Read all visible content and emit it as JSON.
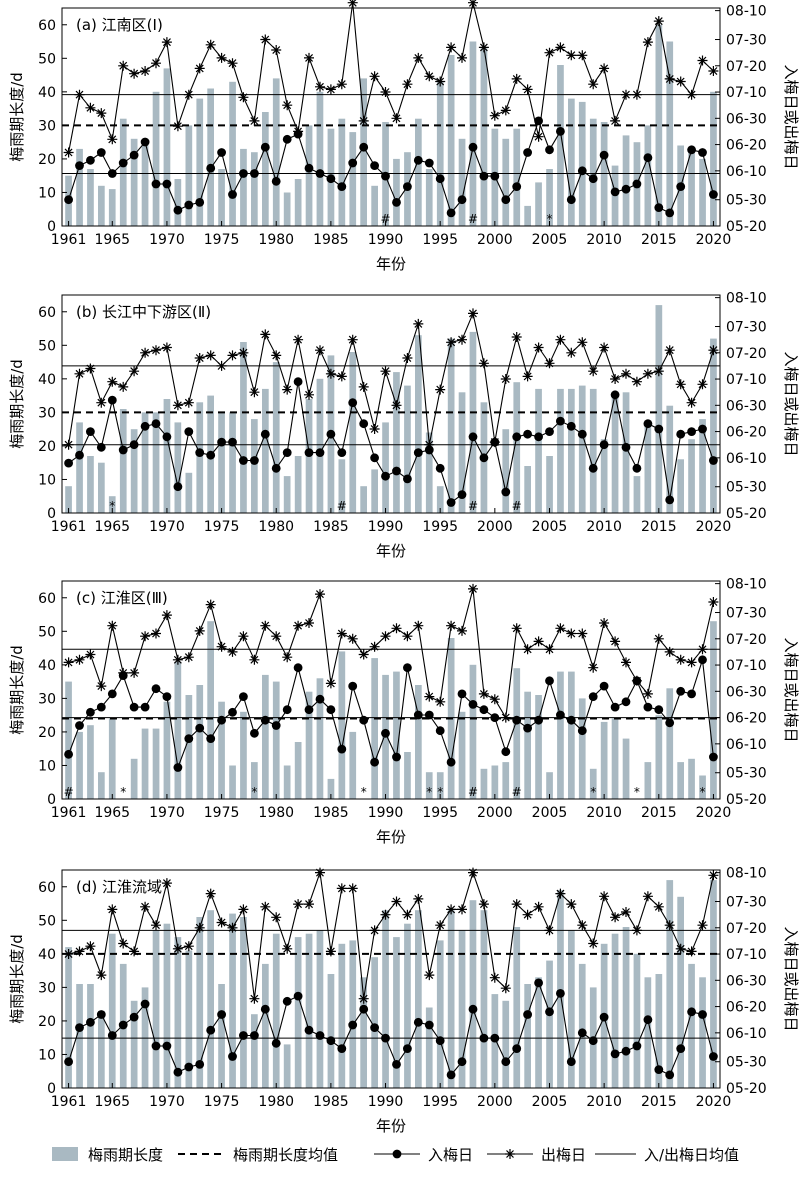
{
  "figure": {
    "y_label_left": "梅雨期长度/d",
    "y_label_right": "入梅日或出梅日",
    "x_label": "年份",
    "x_ticks": [
      "1961",
      "1965",
      "1970",
      "1975",
      "1980",
      "1985",
      "1990",
      "1995",
      "2000",
      "2005",
      "2010",
      "2015",
      "2020"
    ],
    "y_ticks_left": [
      "0",
      "10",
      "20",
      "30",
      "40",
      "50",
      "60"
    ],
    "y_ticks_right": [
      "05-20",
      "05-30",
      "06-10",
      "06-20",
      "06-30",
      "07-10",
      "07-20",
      "07-30",
      "08-10"
    ],
    "colors": {
      "bar": "#a9b9c2",
      "line": "#000000"
    }
  },
  "legend": {
    "bar": "梅雨期长度",
    "mean_length": "梅雨期长度均值",
    "onset": "入梅日",
    "end": "出梅日",
    "mean_dates": "入/出梅日均值"
  },
  "chart_data": [
    {
      "type": "bar",
      "title": "(a) 江南区(Ⅰ)",
      "x": [
        1961,
        1962,
        1963,
        1964,
        1965,
        1966,
        1967,
        1968,
        1969,
        1970,
        1971,
        1972,
        1973,
        1974,
        1975,
        1976,
        1977,
        1978,
        1979,
        1980,
        1981,
        1982,
        1983,
        1984,
        1985,
        1986,
        1987,
        1988,
        1989,
        1990,
        1991,
        1992,
        1993,
        1994,
        1995,
        1996,
        1997,
        1998,
        1999,
        2000,
        2001,
        2002,
        2003,
        2004,
        2005,
        2006,
        2007,
        2008,
        2009,
        2010,
        2011,
        2012,
        2013,
        2014,
        2015,
        2016,
        2017,
        2018,
        2019,
        2020
      ],
      "ylim_left": [
        0,
        65
      ],
      "right_axis_units": "days after 05-20",
      "ylim_right": [
        0,
        83
      ],
      "series": [
        {
          "name": "梅雨期长度",
          "values": [
            15,
            23,
            17,
            12,
            11,
            32,
            26,
            24,
            40,
            47,
            14,
            30,
            38,
            41,
            17,
            43,
            23,
            22,
            34,
            44,
            10,
            14,
            30,
            40,
            29,
            32,
            28,
            44,
            12,
            31,
            20,
            22,
            32,
            17,
            43,
            51,
            26,
            55,
            53,
            29,
            26,
            29,
            6,
            13,
            17,
            48,
            38,
            37,
            32,
            31,
            18,
            27,
            25,
            30,
            60,
            55,
            24,
            22,
            20,
            40
          ]
        },
        {
          "name": "入梅日",
          "values": [
            10,
            23,
            25,
            28,
            20,
            24,
            27,
            32,
            16,
            16,
            6,
            8,
            9,
            22,
            28,
            12,
            20,
            20,
            30,
            17,
            33,
            35,
            22,
            20,
            18,
            15,
            24,
            30,
            23,
            19,
            9,
            15,
            25,
            24,
            18,
            5,
            10,
            30,
            19,
            19,
            10,
            15,
            28,
            40,
            29,
            36,
            10,
            21,
            18,
            27,
            13,
            14,
            16,
            26,
            7,
            5,
            15,
            29,
            28,
            12
          ]
        },
        {
          "name": "出梅日",
          "values": [
            28,
            50,
            45,
            43,
            33,
            61,
            58,
            59,
            62,
            70,
            38,
            50,
            60,
            69,
            64,
            62,
            49,
            40,
            71,
            67,
            46,
            36,
            64,
            53,
            52,
            54,
            85,
            40,
            57,
            51,
            41,
            54,
            64,
            57,
            55,
            68,
            64,
            85,
            68,
            42,
            44,
            56,
            52,
            34,
            66,
            68,
            65,
            65,
            54,
            60,
            40,
            50,
            50,
            70,
            78,
            56,
            55,
            50,
            63,
            59
          ]
        }
      ],
      "mean_length": 30,
      "mean_onset": 20,
      "mean_end": 50,
      "annotations": [
        {
          "x": 1990,
          "label": "#"
        },
        {
          "x": 1998,
          "label": "#"
        },
        {
          "x": 2005,
          "label": "*"
        }
      ]
    },
    {
      "type": "bar",
      "title": "(b) 长江中下游区(Ⅱ)",
      "x": [
        1961,
        1962,
        1963,
        1964,
        1965,
        1966,
        1967,
        1968,
        1969,
        1970,
        1971,
        1972,
        1973,
        1974,
        1975,
        1976,
        1977,
        1978,
        1979,
        1980,
        1981,
        1982,
        1983,
        1984,
        1985,
        1986,
        1987,
        1988,
        1989,
        1990,
        1991,
        1992,
        1993,
        1994,
        1995,
        1996,
        1997,
        1998,
        1999,
        2000,
        2001,
        2002,
        2003,
        2004,
        2005,
        2006,
        2007,
        2008,
        2009,
        2010,
        2011,
        2012,
        2013,
        2014,
        2015,
        2016,
        2017,
        2018,
        2019,
        2020
      ],
      "ylim_left": [
        0,
        65
      ],
      "right_axis_units": "days after 05-20",
      "ylim_right": [
        0,
        83
      ],
      "series": [
        {
          "name": "梅雨期长度",
          "values": [
            8,
            27,
            17,
            15,
            5,
            31,
            25,
            30,
            30,
            34,
            27,
            12,
            33,
            35,
            30,
            30,
            51,
            28,
            37,
            45,
            11,
            17,
            34,
            40,
            47,
            16,
            48,
            8,
            13,
            27,
            42,
            38,
            53,
            24,
            8,
            52,
            36,
            54,
            33,
            0,
            25,
            39,
            14,
            37,
            17,
            37,
            37,
            38,
            37,
            22,
            35,
            36,
            11,
            27,
            62,
            32,
            16,
            22,
            28,
            52
          ]
        },
        {
          "name": "入梅日",
          "values": [
            19,
            22,
            31,
            25,
            43,
            24,
            26,
            33,
            34,
            29,
            10,
            31,
            23,
            22,
            27,
            27,
            20,
            20,
            30,
            17,
            23,
            50,
            23,
            23,
            30,
            23,
            42,
            34,
            21,
            14,
            16,
            13,
            23,
            24,
            17,
            4,
            7,
            29,
            21,
            27,
            8,
            29,
            30,
            29,
            31,
            35,
            33,
            30,
            17,
            26,
            45,
            25,
            17,
            34,
            32,
            5,
            30,
            31,
            32,
            20
          ]
        },
        {
          "name": "出梅日",
          "values": [
            26,
            53,
            55,
            42,
            50,
            48,
            54,
            61,
            62,
            63,
            41,
            42,
            59,
            60,
            56,
            60,
            61,
            46,
            68,
            60,
            47,
            66,
            45,
            62,
            53,
            52,
            66,
            48,
            32,
            54,
            41,
            59,
            72,
            26,
            47,
            65,
            66,
            76,
            57,
            27,
            51,
            67,
            52,
            63,
            57,
            66,
            61,
            65,
            54,
            63,
            51,
            53,
            50,
            53,
            54,
            62,
            49,
            42,
            49,
            62
          ]
        }
      ],
      "mean_length": 30,
      "mean_onset": 26,
      "mean_end": 56,
      "annotations": [
        {
          "x": 1965,
          "label": "*"
        },
        {
          "x": 1986,
          "label": "#"
        },
        {
          "x": 1998,
          "label": "#"
        },
        {
          "x": 2002,
          "label": "#"
        }
      ]
    },
    {
      "type": "bar",
      "title": "(c) 江淮区(Ⅲ)",
      "x": [
        1961,
        1962,
        1963,
        1964,
        1965,
        1966,
        1967,
        1968,
        1969,
        1970,
        1971,
        1972,
        1973,
        1974,
        1975,
        1976,
        1977,
        1978,
        1979,
        1980,
        1981,
        1982,
        1983,
        1984,
        1985,
        1986,
        1987,
        1988,
        1989,
        1990,
        1991,
        1992,
        1993,
        1994,
        1995,
        1996,
        1997,
        1998,
        1999,
        2000,
        2001,
        2002,
        2003,
        2004,
        2005,
        2006,
        2007,
        2008,
        2009,
        2010,
        2011,
        2012,
        2013,
        2014,
        2015,
        2016,
        2017,
        2018,
        2019,
        2020
      ],
      "ylim_left": [
        0,
        65
      ],
      "right_axis_units": "days after 05-20",
      "ylim_right": [
        0,
        83
      ],
      "series": [
        {
          "name": "梅雨期长度",
          "values": [
            35,
            20,
            22,
            8,
            24,
            0,
            12,
            21,
            21,
            29,
            41,
            31,
            34,
            53,
            29,
            10,
            26,
            11,
            37,
            35,
            10,
            17,
            32,
            36,
            6,
            44,
            20,
            0,
            42,
            37,
            38,
            14,
            34,
            8,
            8,
            48,
            26,
            40,
            9,
            10,
            11,
            39,
            32,
            31,
            8,
            38,
            38,
            30,
            9,
            23,
            24,
            18,
            0,
            11,
            25,
            33,
            11,
            12,
            7,
            53
          ]
        },
        {
          "name": "入梅日",
          "values": [
            17,
            28,
            33,
            35,
            40,
            47,
            35,
            35,
            42,
            39,
            12,
            23,
            27,
            23,
            30,
            33,
            39,
            25,
            30,
            28,
            34,
            50,
            34,
            38,
            34,
            19,
            43,
            30,
            14,
            25,
            16,
            50,
            32,
            32,
            26,
            14,
            40,
            36,
            34,
            31,
            18,
            30,
            27,
            30,
            45,
            32,
            30,
            26,
            39,
            43,
            35,
            37,
            45,
            35,
            34,
            29,
            41,
            40,
            53,
            16
          ]
        },
        {
          "name": "出梅日",
          "values": [
            52,
            53,
            55,
            43,
            66,
            48,
            48,
            62,
            63,
            70,
            53,
            54,
            64,
            74,
            58,
            56,
            62,
            53,
            66,
            62,
            54,
            66,
            67,
            78,
            44,
            63,
            61,
            55,
            58,
            62,
            65,
            62,
            66,
            39,
            37,
            66,
            64,
            80,
            40,
            38,
            31,
            65,
            57,
            60,
            57,
            65,
            63,
            63,
            50,
            67,
            60,
            52,
            45,
            40,
            61,
            56,
            53,
            52,
            57,
            75
          ]
        }
      ],
      "mean_length": 24,
      "mean_onset": 31,
      "mean_end": 57,
      "annotations": [
        {
          "x": 1961,
          "label": "#"
        },
        {
          "x": 1966,
          "label": "*"
        },
        {
          "x": 1978,
          "label": "*"
        },
        {
          "x": 1988,
          "label": "*"
        },
        {
          "x": 1994,
          "label": "*"
        },
        {
          "x": 1995,
          "label": "*"
        },
        {
          "x": 1998,
          "label": "#"
        },
        {
          "x": 2002,
          "label": "#"
        },
        {
          "x": 2009,
          "label": "*"
        },
        {
          "x": 2013,
          "label": "*"
        },
        {
          "x": 2019,
          "label": "*"
        }
      ]
    },
    {
      "type": "bar",
      "title": "(d) 江淮流域",
      "x": [
        1961,
        1962,
        1963,
        1964,
        1965,
        1966,
        1967,
        1968,
        1969,
        1970,
        1971,
        1972,
        1973,
        1974,
        1975,
        1976,
        1977,
        1978,
        1979,
        1980,
        1981,
        1982,
        1983,
        1984,
        1985,
        1986,
        1987,
        1988,
        1989,
        1990,
        1991,
        1992,
        1993,
        1994,
        1995,
        1996,
        1997,
        1998,
        1999,
        2000,
        2001,
        2002,
        2003,
        2004,
        2005,
        2006,
        2007,
        2008,
        2009,
        2010,
        2011,
        2012,
        2013,
        2014,
        2015,
        2016,
        2017,
        2018,
        2019,
        2020
      ],
      "ylim_left": [
        0,
        65
      ],
      "right_axis_units": "days after 05-20",
      "ylim_right": [
        0,
        83
      ],
      "series": [
        {
          "name": "梅雨期长度",
          "values": [
            42,
            31,
            31,
            23,
            46,
            37,
            26,
            30,
            47,
            49,
            45,
            41,
            51,
            53,
            31,
            52,
            51,
            22,
            37,
            46,
            13,
            45,
            46,
            47,
            34,
            43,
            44,
            33,
            39,
            53,
            45,
            49,
            53,
            24,
            44,
            53,
            47,
            56,
            53,
            28,
            26,
            48,
            31,
            33,
            38,
            59,
            47,
            37,
            30,
            43,
            46,
            48,
            40,
            33,
            34,
            62,
            57,
            37,
            33,
            62
          ]
        },
        {
          "name": "入梅日",
          "values": [
            10,
            23,
            25,
            28,
            20,
            24,
            27,
            32,
            16,
            16,
            6,
            8,
            9,
            22,
            28,
            12,
            20,
            20,
            30,
            17,
            33,
            35,
            22,
            20,
            18,
            15,
            24,
            30,
            23,
            19,
            9,
            15,
            25,
            24,
            18,
            5,
            10,
            30,
            19,
            19,
            10,
            15,
            28,
            40,
            29,
            36,
            10,
            21,
            18,
            27,
            13,
            14,
            16,
            26,
            7,
            5,
            15,
            29,
            28,
            12
          ]
        },
        {
          "name": "出梅日",
          "values": [
            51,
            52,
            54,
            43,
            68,
            55,
            52,
            69,
            62,
            78,
            53,
            54,
            61,
            74,
            63,
            61,
            68,
            34,
            69,
            65,
            53,
            70,
            70,
            82,
            52,
            76,
            76,
            34,
            60,
            66,
            71,
            66,
            72,
            43,
            62,
            68,
            68,
            82,
            70,
            42,
            38,
            70,
            66,
            69,
            60,
            74,
            70,
            62,
            55,
            73,
            65,
            67,
            60,
            73,
            69,
            62,
            53,
            52,
            62,
            81
          ]
        }
      ],
      "mean_length": 40,
      "mean_onset": 19,
      "mean_end": 60,
      "annotations": []
    }
  ]
}
